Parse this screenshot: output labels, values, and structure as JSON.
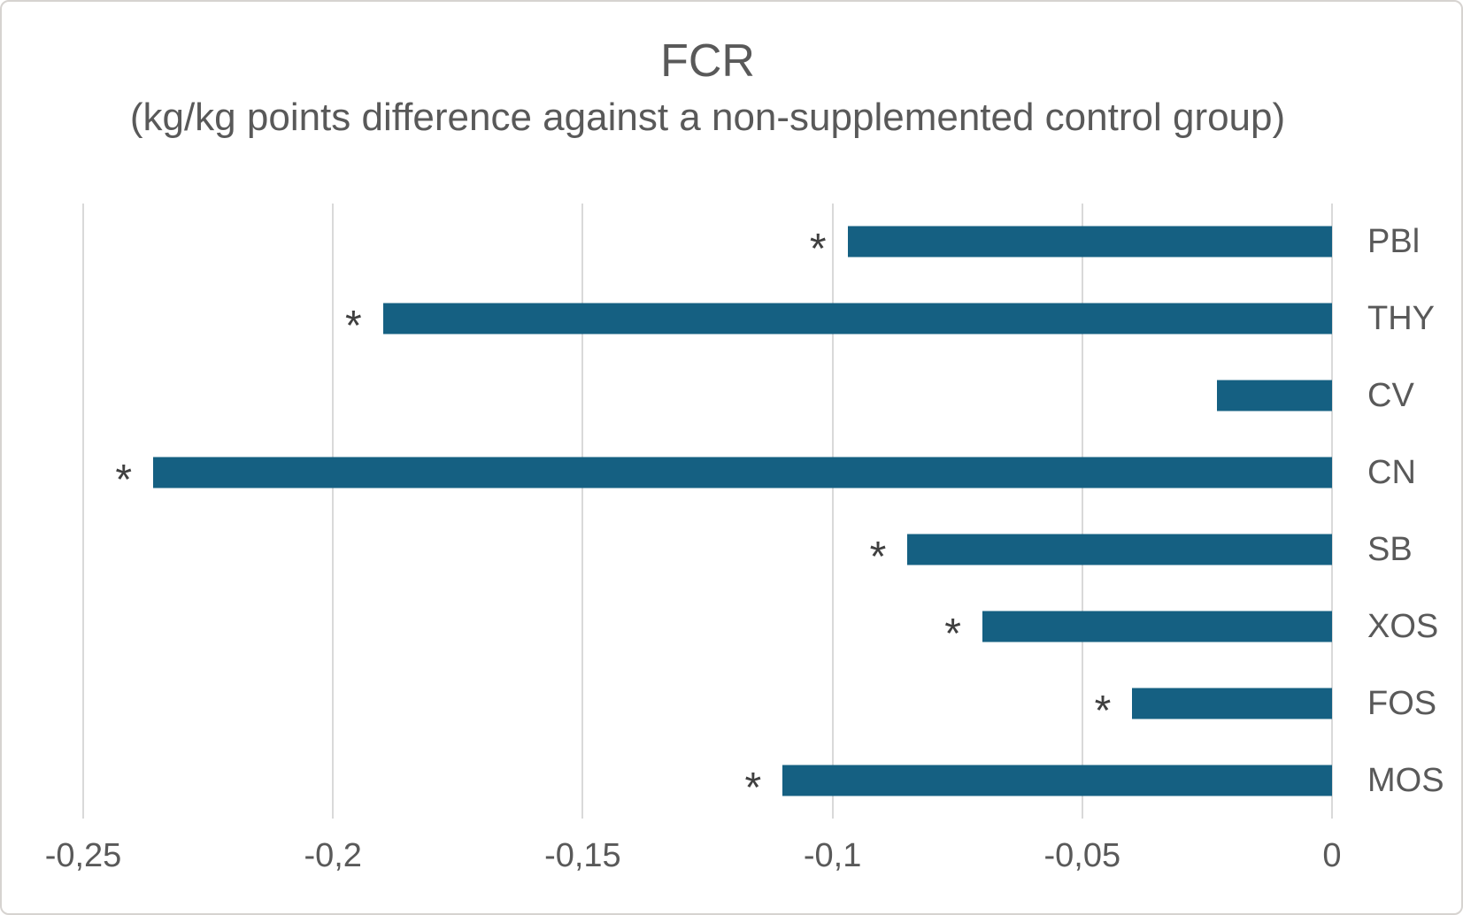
{
  "colors": {
    "bar": "#156082",
    "grid": "#d9d9d9",
    "text": "#595959",
    "marker": "#404040",
    "frame_border": "#d6d3d0",
    "background": "#ffffff"
  },
  "chart_data": {
    "type": "bar",
    "orientation": "horizontal",
    "title": "FCR",
    "subtitle": "(kg/kg points difference against a non-supplemented control group)",
    "categories": [
      "PBl",
      "THY",
      "CV",
      "CN",
      "SB",
      "XOS",
      "FOS",
      "MOS"
    ],
    "values": [
      -0.097,
      -0.19,
      -0.023,
      -0.236,
      -0.085,
      -0.07,
      -0.04,
      -0.11
    ],
    "significant": [
      true,
      true,
      false,
      true,
      true,
      true,
      true,
      true
    ],
    "significance_marker": "*",
    "xlim": [
      -0.25,
      0
    ],
    "x_ticks": [
      -0.25,
      -0.2,
      -0.15,
      -0.1,
      -0.05,
      0
    ],
    "x_tick_labels": [
      "-0,25",
      "-0,2",
      "-0,15",
      "-0,1",
      "-0,05",
      "0"
    ],
    "grid": true,
    "value_axis_side": "bottom",
    "category_axis_side": "right",
    "bar_direction": "negative-from-right"
  }
}
